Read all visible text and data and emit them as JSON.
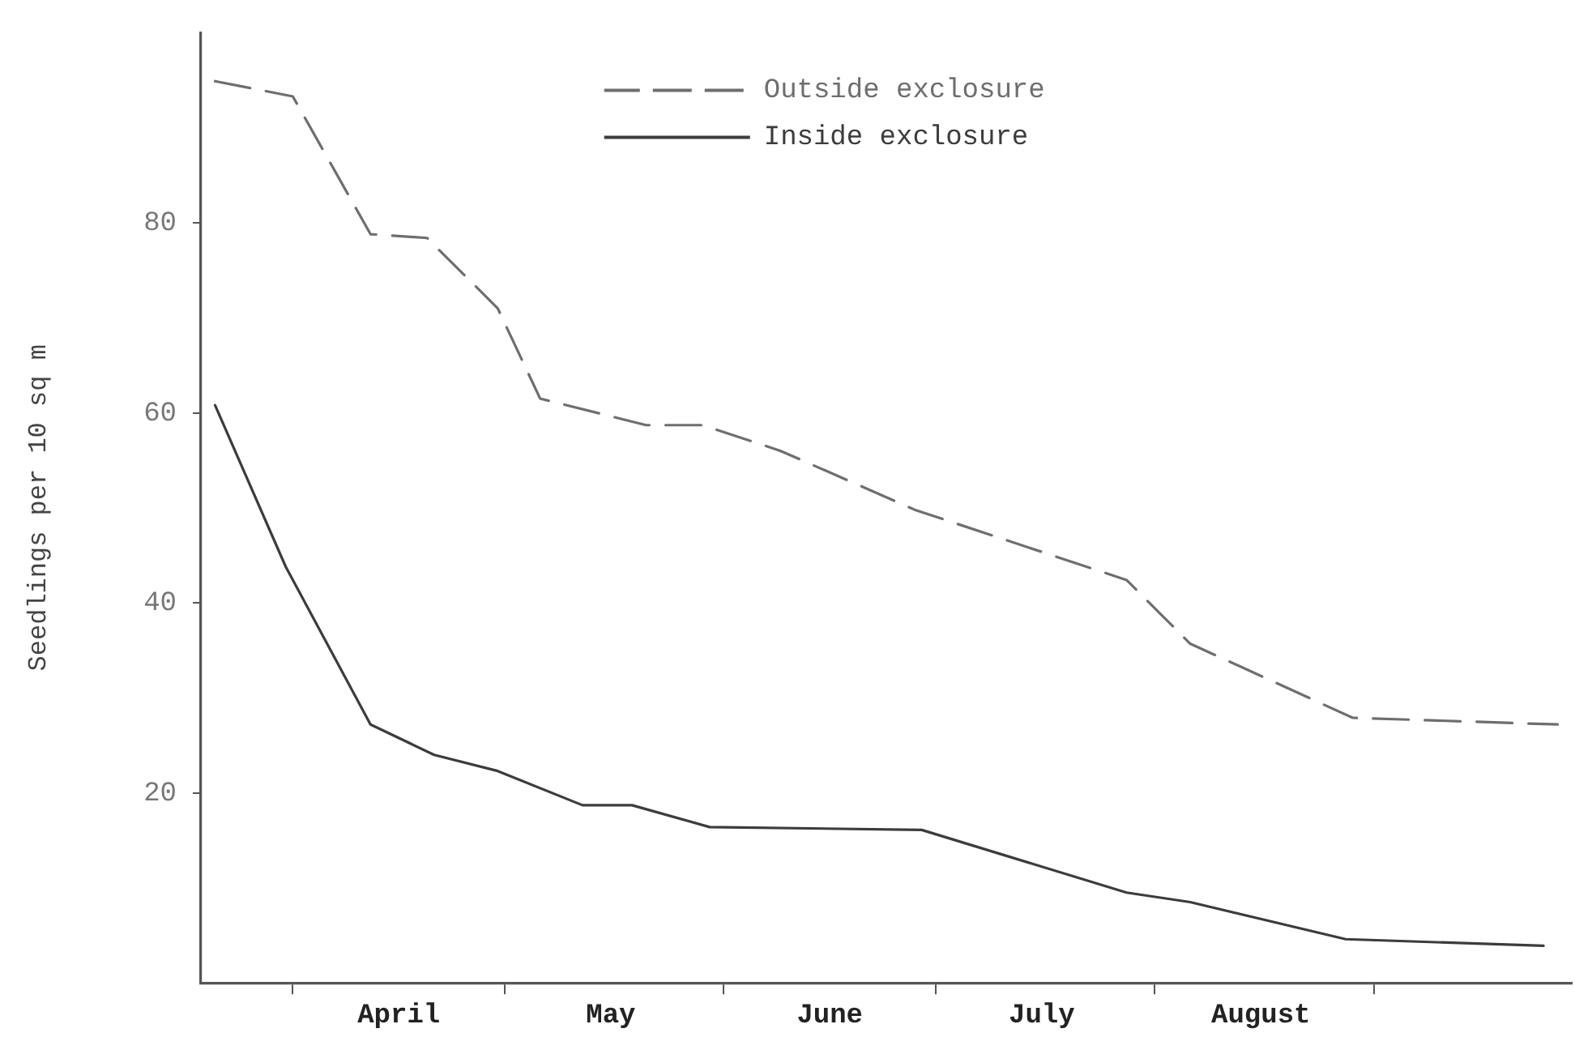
{
  "chart_data": {
    "type": "line",
    "ylabel": "Seedlings per 10 sq m",
    "xlim": [
      "--03-19",
      "--09-29"
    ],
    "xticks": [
      {
        "value": "--04-01",
        "label": null
      },
      {
        "value": "--04-16",
        "label": "April"
      },
      {
        "value": "--05-01",
        "label": null
      },
      {
        "value": "--05-16",
        "label": "May"
      },
      {
        "value": "--06-01",
        "label": null
      },
      {
        "value": "--06-16",
        "label": "June"
      },
      {
        "value": "--07-01",
        "label": null
      },
      {
        "value": "--07-16",
        "label": "July"
      },
      {
        "value": "--08-01",
        "label": null
      },
      {
        "value": "--08-16",
        "label": "August"
      },
      {
        "value": "--09-01",
        "label": null
      }
    ],
    "ylim": [
      0,
      100
    ],
    "yticks": [
      20,
      40,
      60,
      80
    ],
    "grid": false,
    "legend": "top",
    "marker": "none",
    "series": [
      {
        "name": "Outside exclosure",
        "color": "#6e6e6e",
        "line_style": "dashed",
        "x": [
          "--03-21",
          "--04-01",
          "--04-12",
          "--04-20",
          "--04-30",
          "--05-06",
          "--05-21",
          "--05-29",
          "--06-09",
          "--06-28",
          "--07-28",
          "--08-06",
          "--08-29",
          "--09-27"
        ],
        "values": [
          94.9,
          93.3,
          78.8,
          78.4,
          71,
          61.5,
          58.7,
          58.7,
          56,
          49.8,
          42.4,
          35.7,
          27.9,
          27.2
        ]
      },
      {
        "name": "Inside exclosure",
        "color": "#3c3c3c",
        "line_style": "solid",
        "x": [
          "--03-21",
          "--03-31",
          "--04-12",
          "--04-21",
          "--04-30",
          "--05-12",
          "--05-19",
          "--05-30",
          "--06-29",
          "--07-28",
          "--08-06",
          "--08-28",
          "--09-25"
        ],
        "values": [
          60.8,
          43.8,
          27.2,
          24,
          22.3,
          18.7,
          18.7,
          16.4,
          16.1,
          9.5,
          8.5,
          4.6,
          3.9
        ]
      }
    ]
  }
}
